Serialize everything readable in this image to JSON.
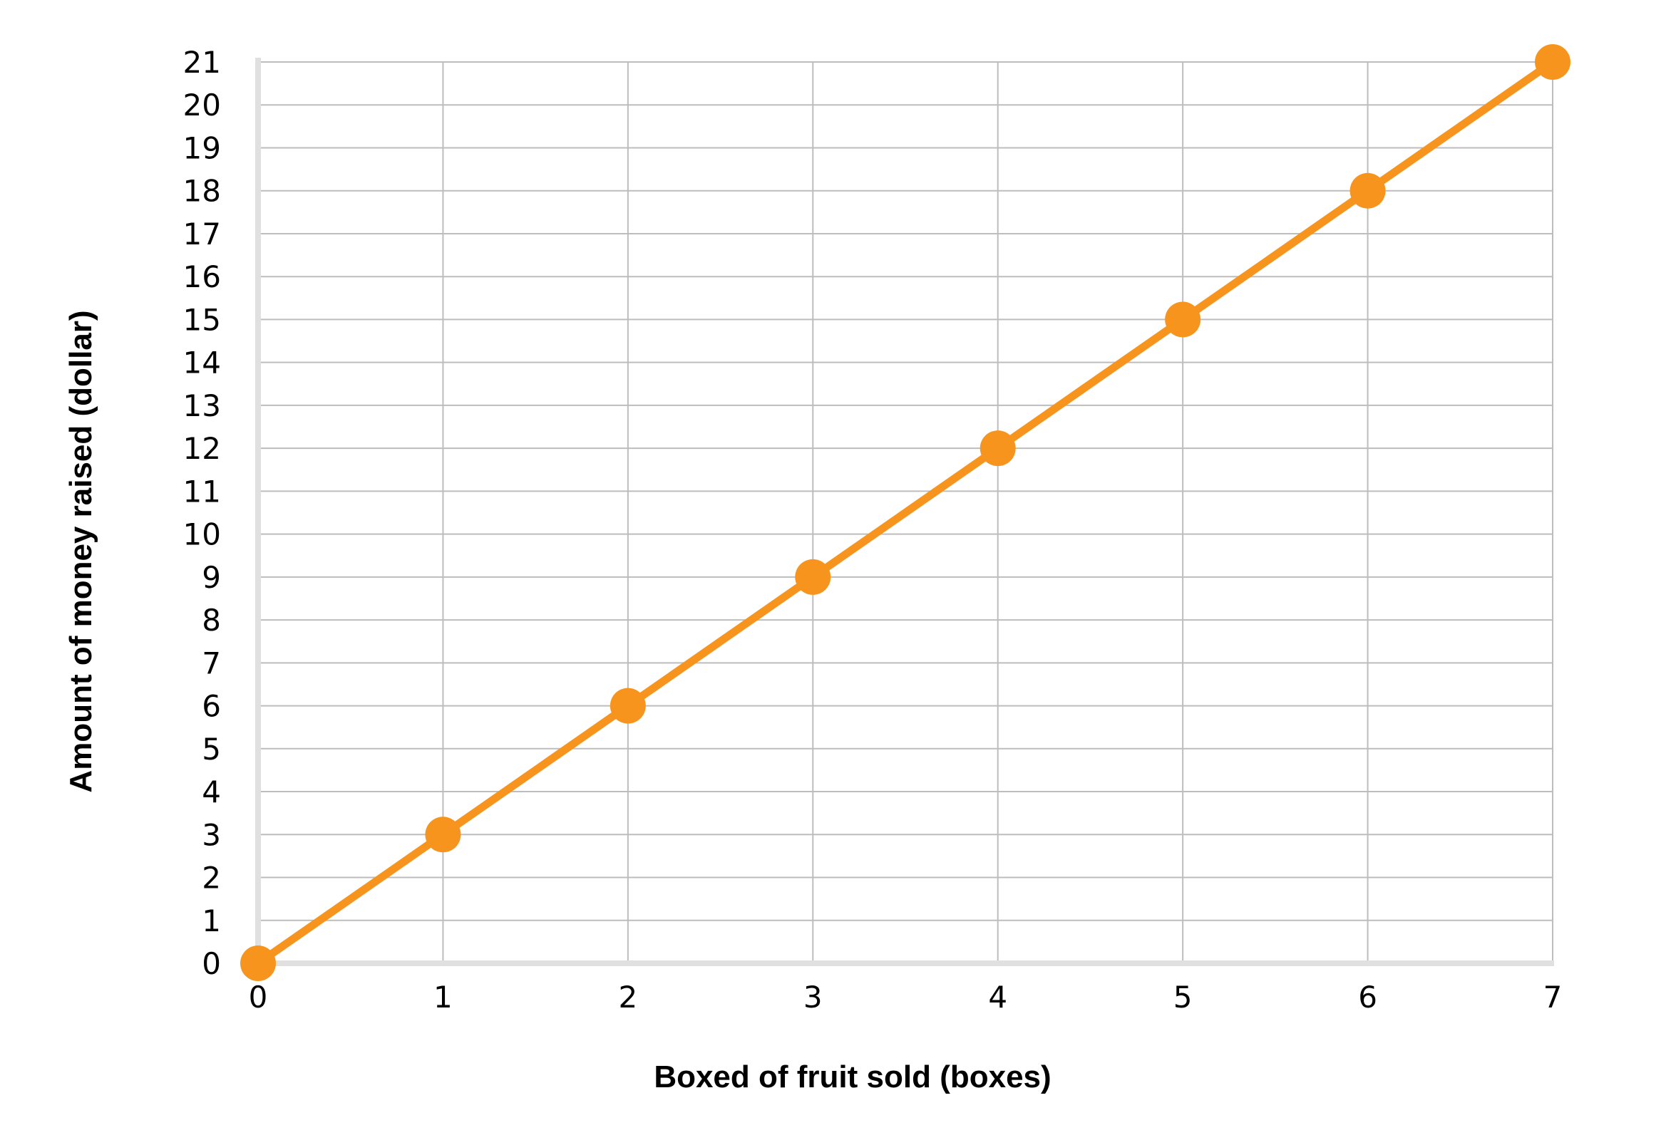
{
  "chart_data": {
    "type": "line",
    "title": "",
    "xlabel": "Boxed of fruit sold (boxes)",
    "ylabel": "Amount of money raised (dollar)",
    "xlim": [
      0,
      7
    ],
    "ylim": [
      0,
      21
    ],
    "x_ticks": [
      "0",
      "1",
      "2",
      "3",
      "4",
      "5",
      "6",
      "7"
    ],
    "y_ticks": [
      "0",
      "1",
      "2",
      "3",
      "4",
      "5",
      "6",
      "7",
      "8",
      "9",
      "10",
      "11",
      "12",
      "13",
      "14",
      "15",
      "16",
      "17",
      "18",
      "19",
      "20",
      "21"
    ],
    "grid": true,
    "legend": "none",
    "series": [
      {
        "x": [
          0,
          1,
          2,
          3,
          4,
          5,
          6,
          7
        ],
        "y": [
          0,
          3,
          6,
          9,
          12,
          15,
          18,
          21
        ],
        "color": "#F7941D",
        "markers": true
      }
    ]
  },
  "colors": {
    "line": "#F7941D",
    "grid": "#bdbdbd",
    "axis": "#e0e0e0"
  }
}
